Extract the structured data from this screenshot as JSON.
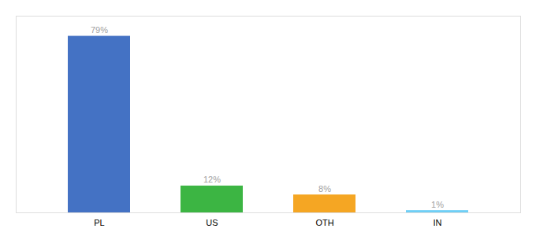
{
  "chart_data": {
    "type": "bar",
    "categories": [
      "PL",
      "US",
      "OTH",
      "IN"
    ],
    "values": [
      79,
      12,
      8,
      1
    ],
    "value_labels": [
      "79%",
      "12%",
      "8%",
      "1%"
    ],
    "data_labels": true,
    "colors": [
      "#4472c4",
      "#3cb543",
      "#f5a623",
      "#6ecff6"
    ],
    "ylim": [
      0,
      88
    ],
    "grid": false,
    "tick_labels": "x"
  }
}
